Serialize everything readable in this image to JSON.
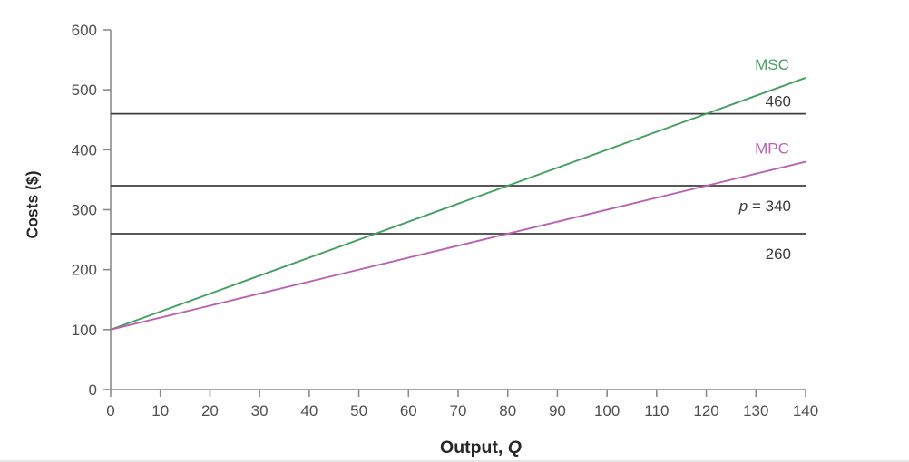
{
  "figure": {
    "background": "#ffffff"
  },
  "chart_data": {
    "type": "line",
    "title": "",
    "xlabel_prefix": "Output, ",
    "xlabel_italic": "Q",
    "ylabel": "Costs ($)",
    "xlim": [
      0,
      140
    ],
    "ylim": [
      0,
      600
    ],
    "x_ticks": [
      0,
      10,
      20,
      30,
      40,
      50,
      60,
      70,
      80,
      90,
      100,
      110,
      120,
      130,
      140
    ],
    "y_ticks": [
      0,
      100,
      200,
      300,
      400,
      500,
      600
    ],
    "grid": false,
    "legend": "inline-line-labels",
    "axis_color": "#8a8a8a",
    "tick_label_color": "#4f4f4f",
    "annotation_color": "#3b3b3b",
    "reference_line_color": "#3f3f3f",
    "series": [
      {
        "name": "MSC",
        "color": "#44a060",
        "points": [
          [
            0,
            100
          ],
          [
            140,
            520
          ]
        ]
      },
      {
        "name": "MPC",
        "color": "#b763b1",
        "points": [
          [
            0,
            100
          ],
          [
            140,
            380
          ]
        ]
      }
    ],
    "reference_lines": [
      {
        "value": 460,
        "italic_prefix": "",
        "label": "460",
        "position": "above"
      },
      {
        "value": 340,
        "italic_prefix": "p",
        "label": " = 340",
        "position": "below"
      },
      {
        "value": 260,
        "italic_prefix": "",
        "label": "260",
        "position": "below"
      }
    ]
  }
}
